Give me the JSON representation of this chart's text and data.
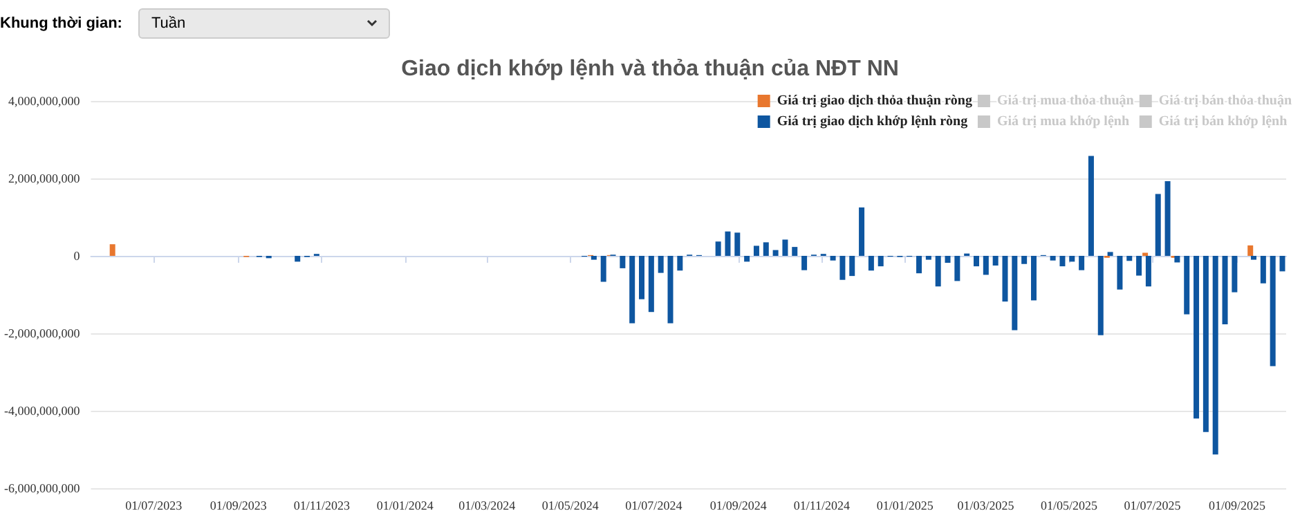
{
  "chart_data": {
    "type": "bar",
    "title": "Giao dịch khớp lệnh và thỏa thuận của NĐT NN",
    "annotations": [
      "Khung thời gian:",
      "Tuần"
    ],
    "xlim": [
      "2023-05-16",
      "2025-10-07"
    ],
    "xticks": [
      {
        "value": "2023-07-01",
        "label": "01/07/2023"
      },
      {
        "value": "2023-09-01",
        "label": "01/09/2023"
      },
      {
        "value": "2023-11-01",
        "label": "01/11/2023"
      },
      {
        "value": "2024-01-01",
        "label": "01/01/2024"
      },
      {
        "value": "2024-03-01",
        "label": "01/03/2024"
      },
      {
        "value": "2024-05-01",
        "label": "01/05/2024"
      },
      {
        "value": "2024-07-01",
        "label": "01/07/2024"
      },
      {
        "value": "2024-09-01",
        "label": "01/09/2024"
      },
      {
        "value": "2024-11-01",
        "label": "01/11/2024"
      },
      {
        "value": "2025-01-01",
        "label": "01/01/2025"
      },
      {
        "value": "2025-03-01",
        "label": "01/03/2025"
      },
      {
        "value": "2025-05-01",
        "label": "01/05/2025"
      },
      {
        "value": "2025-07-01",
        "label": "01/07/2025"
      },
      {
        "value": "2025-09-01",
        "label": "01/09/2025"
      }
    ],
    "ylim": [
      -6000000000,
      4000000000
    ],
    "yticks": [
      {
        "value": -6000000000,
        "label": "-6,000,000,000"
      },
      {
        "value": -4000000000,
        "label": "-4,000,000,000"
      },
      {
        "value": -2000000000,
        "label": "-2,000,000,000"
      },
      {
        "value": 0,
        "label": "0"
      },
      {
        "value": 2000000000,
        "label": "2,000,000,000"
      },
      {
        "value": 4000000000,
        "label": "4,000,000,000"
      }
    ],
    "grid": "y",
    "legend": "top right",
    "series": [
      {
        "name": "Giá trị giao dịch thỏa thuận ròng",
        "color": "#e8772e",
        "x": [
          "2023-06-02",
          "2023-09-08",
          "2024-05-17",
          "2024-05-31",
          "2025-05-30",
          "2025-06-27",
          "2025-07-18",
          "2025-09-12"
        ],
        "values": [
          300000000,
          -30000000,
          20000000,
          20000000,
          -50000000,
          80000000,
          -50000000,
          270000000
        ]
      },
      {
        "name": "Giá trị giao dịch khớp lệnh ròng",
        "color": "#0e56a0",
        "x": [
          "2023-09-15",
          "2023-09-22",
          "2023-10-13",
          "2023-10-20",
          "2023-10-27",
          "2024-05-10",
          "2024-05-17",
          "2024-05-24",
          "2024-05-31",
          "2024-06-07",
          "2024-06-14",
          "2024-06-21",
          "2024-06-28",
          "2024-07-05",
          "2024-07-12",
          "2024-07-19",
          "2024-07-26",
          "2024-08-02",
          "2024-08-09",
          "2024-08-16",
          "2024-08-23",
          "2024-08-30",
          "2024-09-06",
          "2024-09-13",
          "2024-09-20",
          "2024-09-27",
          "2024-10-04",
          "2024-10-11",
          "2024-10-18",
          "2024-10-25",
          "2024-11-01",
          "2024-11-08",
          "2024-11-15",
          "2024-11-22",
          "2024-11-29",
          "2024-12-06",
          "2024-12-13",
          "2024-12-20",
          "2024-12-27",
          "2025-01-03",
          "2025-01-10",
          "2025-01-17",
          "2025-01-24",
          "2025-01-31",
          "2025-02-07",
          "2025-02-14",
          "2025-02-21",
          "2025-02-28",
          "2025-03-07",
          "2025-03-14",
          "2025-03-21",
          "2025-03-28",
          "2025-04-04",
          "2025-04-11",
          "2025-04-18",
          "2025-04-25",
          "2025-05-02",
          "2025-05-09",
          "2025-05-16",
          "2025-05-23",
          "2025-05-30",
          "2025-06-06",
          "2025-06-13",
          "2025-06-20",
          "2025-06-27",
          "2025-07-04",
          "2025-07-11",
          "2025-07-18",
          "2025-07-25",
          "2025-08-01",
          "2025-08-08",
          "2025-08-15",
          "2025-08-22",
          "2025-08-29",
          "2025-09-05",
          "2025-09-12",
          "2025-09-19",
          "2025-09-26",
          "2025-10-03"
        ],
        "values": [
          -30000000,
          -60000000,
          -150000000,
          -30000000,
          50000000,
          -20000000,
          -100000000,
          -670000000,
          30000000,
          -320000000,
          -1740000000,
          -1120000000,
          -1450000000,
          -440000000,
          -1740000000,
          -380000000,
          30000000,
          20000000,
          null,
          370000000,
          630000000,
          600000000,
          -150000000,
          260000000,
          350000000,
          150000000,
          420000000,
          230000000,
          -370000000,
          30000000,
          50000000,
          -120000000,
          -620000000,
          -520000000,
          1250000000,
          -380000000,
          -270000000,
          -20000000,
          -30000000,
          -20000000,
          -450000000,
          -100000000,
          -790000000,
          -180000000,
          -650000000,
          60000000,
          -270000000,
          -490000000,
          -250000000,
          -1180000000,
          -1920000000,
          -210000000,
          -1150000000,
          20000000,
          -120000000,
          -270000000,
          -150000000,
          -370000000,
          2580000000,
          -2050000000,
          100000000,
          -870000000,
          -130000000,
          -510000000,
          -790000000,
          1600000000,
          1930000000,
          -170000000,
          -1510000000,
          -4200000000,
          -4550000000,
          -5130000000,
          -1770000000,
          -940000000,
          null,
          -100000000,
          -710000000,
          -2850000000,
          -400000000
        ]
      },
      {
        "name": "Giá trị mua thỏa thuận",
        "color": "#cccccc"
      },
      {
        "name": "Giá trị mua khớp lệnh",
        "color": "#cccccc"
      },
      {
        "name": "Giá trị bán thỏa thuận",
        "color": "#cccccc"
      },
      {
        "name": "Giá trị bán khớp lệnh",
        "color": "#cccccc"
      }
    ]
  }
}
